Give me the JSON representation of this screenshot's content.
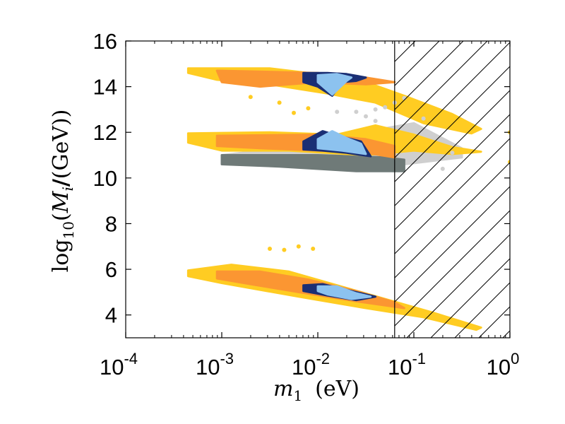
{
  "chart_data": {
    "type": "scatter",
    "title": "",
    "xlabel": {
      "main": "m",
      "sub": "1",
      "unit": "(eV)"
    },
    "ylabel": {
      "prefix": "log",
      "sub": "10",
      "open": "(",
      "var": "M",
      "varsub": "i",
      "slash": "/",
      "unit": "(GeV))"
    },
    "xscale": "log",
    "xlim_log10": [
      -4,
      0
    ],
    "ylim": [
      3,
      16
    ],
    "xticks": [
      {
        "exp": -4,
        "base": "10",
        "label": "-4"
      },
      {
        "exp": -3,
        "base": "10",
        "label": "-3"
      },
      {
        "exp": -2,
        "base": "10",
        "label": "-2"
      },
      {
        "exp": -1,
        "base": "10",
        "label": "-1"
      },
      {
        "exp": 0,
        "base": "10",
        "label": "0"
      }
    ],
    "yticks": [
      {
        "value": 4,
        "label": "4"
      },
      {
        "value": 6,
        "label": "6"
      },
      {
        "value": 8,
        "label": "8"
      },
      {
        "value": 10,
        "label": "10"
      },
      {
        "value": 12,
        "label": "12"
      },
      {
        "value": 14,
        "label": "14"
      },
      {
        "value": 16,
        "label": "16"
      }
    ],
    "excluded_region": {
      "xmin_log10": -1.2,
      "xmax_log10": 0,
      "style": "hatched"
    },
    "colors": {
      "gray_light": "#cfcfcf",
      "gray_dark": "#6f7a78",
      "yellow": "#ffcc22",
      "orange": "#fb9632",
      "navy": "#1b2f74",
      "light_blue": "#8cc2ef"
    },
    "series": [
      {
        "name": "light gray region",
        "color": "#cfcfcf",
        "region": [
          [
            -2.6,
            11.2
          ],
          [
            -1.9,
            11.6
          ],
          [
            -1.4,
            12.1
          ],
          [
            -1.0,
            12.4
          ],
          [
            -0.5,
            11.3
          ],
          [
            -0.5,
            10.9
          ],
          [
            -0.9,
            10.7
          ],
          [
            -1.3,
            10.5
          ],
          [
            -1.9,
            10.6
          ],
          [
            -2.8,
            10.9
          ],
          [
            -3.0,
            11.0
          ]
        ],
        "points": [
          [
            -1.8,
            12.9
          ],
          [
            -1.6,
            12.9
          ],
          [
            -1.4,
            13.0
          ],
          [
            -1.3,
            13.1
          ],
          [
            -1.2,
            13.3
          ],
          [
            -1.1,
            13.5
          ],
          [
            -0.9,
            12.6
          ],
          [
            -0.75,
            11.8
          ],
          [
            -0.6,
            11.1
          ],
          [
            -0.8,
            10.8
          ],
          [
            -1.4,
            12.5
          ],
          [
            -1.5,
            12.7
          ],
          [
            -1.05,
            12.1
          ],
          [
            -0.7,
            10.4
          ]
        ]
      },
      {
        "name": "dark gray region",
        "color": "#6f7a78",
        "region": [
          [
            -3.0,
            11.0
          ],
          [
            -2.0,
            11.0
          ],
          [
            -1.3,
            10.9
          ],
          [
            -1.1,
            10.8
          ],
          [
            -1.1,
            10.3
          ],
          [
            -1.6,
            10.3
          ],
          [
            -2.4,
            10.5
          ],
          [
            -3.0,
            10.6
          ]
        ]
      },
      {
        "name": "yellow (upper band)",
        "color": "#ffcc22",
        "region": [
          [
            -3.35,
            14.8
          ],
          [
            -2.5,
            14.8
          ],
          [
            -1.9,
            14.5
          ],
          [
            -1.5,
            14.2
          ],
          [
            -1.1,
            13.6
          ],
          [
            -0.6,
            12.8
          ],
          [
            -0.3,
            12.15
          ],
          [
            -0.4,
            11.95
          ],
          [
            -0.9,
            12.4
          ],
          [
            -1.4,
            13.3
          ],
          [
            -1.9,
            13.7
          ],
          [
            -2.5,
            14.1
          ],
          [
            -3.05,
            14.3
          ],
          [
            -3.35,
            14.6
          ]
        ],
        "points": [
          [
            -2.7,
            13.55
          ],
          [
            -2.4,
            13.3
          ],
          [
            -2.25,
            12.85
          ],
          [
            -2.1,
            13.05
          ],
          [
            0,
            12.0
          ]
        ]
      },
      {
        "name": "yellow (middle band)",
        "color": "#ffcc22",
        "region": [
          [
            -3.35,
            11.95
          ],
          [
            -2.5,
            12.0
          ],
          [
            -1.8,
            11.9
          ],
          [
            -1.4,
            12.3
          ],
          [
            -1.0,
            11.9
          ],
          [
            -0.6,
            11.35
          ],
          [
            -0.3,
            11.15
          ],
          [
            -0.6,
            11.05
          ],
          [
            -1.0,
            11.2
          ],
          [
            -1.5,
            11.0
          ],
          [
            -2.3,
            11.2
          ],
          [
            -3.0,
            11.2
          ],
          [
            -3.35,
            11.55
          ]
        ],
        "points": [
          [
            0,
            10.7
          ]
        ]
      },
      {
        "name": "yellow (lower band)",
        "color": "#ffcc22",
        "region": [
          [
            -3.35,
            5.95
          ],
          [
            -2.9,
            6.2
          ],
          [
            -2.3,
            5.9
          ],
          [
            -1.8,
            5.3
          ],
          [
            -1.3,
            4.7
          ],
          [
            -0.8,
            4.1
          ],
          [
            -0.3,
            3.45
          ],
          [
            -0.35,
            3.35
          ],
          [
            -0.9,
            3.9
          ],
          [
            -1.5,
            4.3
          ],
          [
            -2.2,
            4.8
          ],
          [
            -3.0,
            5.4
          ],
          [
            -3.35,
            5.7
          ]
        ],
        "points": [
          [
            -2.5,
            6.9
          ],
          [
            -2.35,
            6.85
          ],
          [
            -2.2,
            7.0
          ],
          [
            -2.05,
            6.9
          ]
        ]
      },
      {
        "name": "orange (upper band)",
        "color": "#fb9632",
        "region": [
          [
            -3.05,
            14.7
          ],
          [
            -2.0,
            14.6
          ],
          [
            -1.5,
            14.4
          ],
          [
            -1.2,
            14.2
          ],
          [
            -1.5,
            14.1
          ],
          [
            -2.0,
            14.2
          ],
          [
            -2.6,
            14.0
          ],
          [
            -3.0,
            14.2
          ]
        ]
      },
      {
        "name": "orange (middle band)",
        "color": "#fb9632",
        "region": [
          [
            -3.05,
            11.85
          ],
          [
            -2.0,
            11.9
          ],
          [
            -1.5,
            11.7
          ],
          [
            -1.2,
            11.4
          ],
          [
            -1.2,
            10.9
          ],
          [
            -1.5,
            11.1
          ],
          [
            -2.0,
            11.2
          ],
          [
            -2.6,
            11.3
          ],
          [
            -3.05,
            11.4
          ]
        ]
      },
      {
        "name": "orange (lower band)",
        "color": "#fb9632",
        "region": [
          [
            -3.05,
            5.9
          ],
          [
            -2.6,
            5.9
          ],
          [
            -2.1,
            5.55
          ],
          [
            -1.6,
            5.05
          ],
          [
            -1.2,
            4.55
          ],
          [
            -1.1,
            4.3
          ],
          [
            -1.6,
            4.6
          ],
          [
            -2.2,
            5.0
          ],
          [
            -2.7,
            5.35
          ],
          [
            -3.05,
            5.6
          ]
        ]
      },
      {
        "name": "navy (upper band)",
        "color": "#1b2f74",
        "region": [
          [
            -2.15,
            14.6
          ],
          [
            -1.9,
            14.6
          ],
          [
            -1.7,
            14.55
          ],
          [
            -1.5,
            14.4
          ],
          [
            -1.6,
            14.25
          ],
          [
            -1.75,
            14.2
          ],
          [
            -1.85,
            13.6
          ],
          [
            -2.0,
            14.0
          ],
          [
            -2.15,
            14.2
          ]
        ]
      },
      {
        "name": "navy (middle band)",
        "color": "#1b2f74",
        "region": [
          [
            -2.15,
            11.6
          ],
          [
            -1.95,
            12.05
          ],
          [
            -1.75,
            11.8
          ],
          [
            -1.55,
            11.6
          ],
          [
            -1.45,
            10.95
          ],
          [
            -1.7,
            11.1
          ],
          [
            -1.95,
            11.2
          ],
          [
            -2.15,
            11.25
          ]
        ]
      },
      {
        "name": "navy (lower band)",
        "color": "#1b2f74",
        "region": [
          [
            -2.15,
            5.3
          ],
          [
            -1.95,
            5.35
          ],
          [
            -1.6,
            5.0
          ],
          [
            -1.4,
            4.8
          ],
          [
            -1.6,
            4.65
          ],
          [
            -1.9,
            4.85
          ],
          [
            -2.15,
            5.05
          ]
        ]
      },
      {
        "name": "light blue (upper band)",
        "color": "#8cc2ef",
        "region": [
          [
            -2.0,
            14.5
          ],
          [
            -1.8,
            14.55
          ],
          [
            -1.65,
            14.4
          ],
          [
            -1.7,
            14.25
          ],
          [
            -1.85,
            13.65
          ],
          [
            -2.0,
            14.2
          ]
        ]
      },
      {
        "name": "light blue (middle band)",
        "color": "#8cc2ef",
        "region": [
          [
            -2.0,
            11.7
          ],
          [
            -1.85,
            12.05
          ],
          [
            -1.7,
            11.75
          ],
          [
            -1.55,
            11.5
          ],
          [
            -1.5,
            11.05
          ],
          [
            -1.75,
            11.2
          ],
          [
            -2.0,
            11.3
          ]
        ]
      },
      {
        "name": "light blue (lower band)",
        "color": "#8cc2ef",
        "region": [
          [
            -2.0,
            5.25
          ],
          [
            -1.8,
            5.25
          ],
          [
            -1.6,
            4.95
          ],
          [
            -1.45,
            4.8
          ],
          [
            -1.65,
            4.7
          ],
          [
            -1.9,
            4.9
          ],
          [
            -2.0,
            5.05
          ]
        ]
      }
    ]
  }
}
